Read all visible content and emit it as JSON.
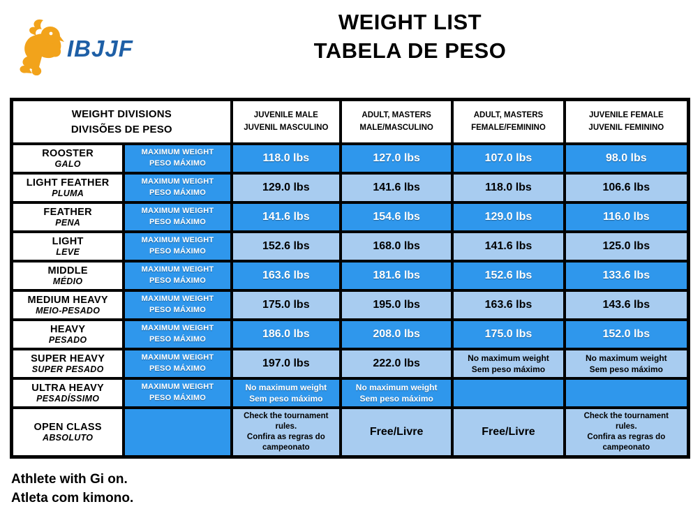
{
  "header": {
    "logo_text": "IBJJF",
    "title_en": "WEIGHT LIST",
    "title_pt": "TABELA DE PESO"
  },
  "colors": {
    "bright_blue": "#2F97EC",
    "light_blue": "#A8CCF0",
    "logo_blue": "#1E5FA6",
    "logo_orange": "#F2A31B"
  },
  "table": {
    "header": {
      "divisions_en": "WEIGHT DIVISIONS",
      "divisions_pt": "DIVISÕES DE PESO",
      "columns": [
        {
          "en": "JUVENILE MALE",
          "pt": "JUVENIL MASCULINO"
        },
        {
          "en": "ADULT, MASTERS",
          "pt": "MALE/MASCULINO"
        },
        {
          "en": "ADULT, MASTERS",
          "pt": "FEMALE/FEMININO"
        },
        {
          "en": "JUVENILE FEMALE",
          "pt": "JUVENIL FEMININO"
        }
      ]
    },
    "max_weight_label": {
      "en": "MAXIMUM WEIGHT",
      "pt": "PESO MÁXIMO"
    },
    "rows": [
      {
        "name_en": "ROOSTER",
        "name_pt": "GALO",
        "shade": "bright",
        "show_max_label": true,
        "cells": [
          {
            "variant": "value",
            "lines": [
              "118.0 lbs"
            ]
          },
          {
            "variant": "value",
            "lines": [
              "127.0 lbs"
            ]
          },
          {
            "variant": "value",
            "lines": [
              "107.0 lbs"
            ]
          },
          {
            "variant": "value",
            "lines": [
              "98.0 lbs"
            ]
          }
        ]
      },
      {
        "name_en": "LIGHT FEATHER",
        "name_pt": "PLUMA",
        "shade": "light",
        "show_max_label": true,
        "cells": [
          {
            "variant": "value",
            "lines": [
              "129.0 lbs"
            ]
          },
          {
            "variant": "value",
            "lines": [
              "141.6 lbs"
            ]
          },
          {
            "variant": "value",
            "lines": [
              "118.0 lbs"
            ]
          },
          {
            "variant": "value",
            "lines": [
              "106.6 lbs"
            ]
          }
        ]
      },
      {
        "name_en": "FEATHER",
        "name_pt": "PENA",
        "shade": "bright",
        "show_max_label": true,
        "cells": [
          {
            "variant": "value",
            "lines": [
              "141.6 lbs"
            ]
          },
          {
            "variant": "value",
            "lines": [
              "154.6 lbs"
            ]
          },
          {
            "variant": "value",
            "lines": [
              "129.0 lbs"
            ]
          },
          {
            "variant": "value",
            "lines": [
              "116.0 lbs"
            ]
          }
        ]
      },
      {
        "name_en": "LIGHT",
        "name_pt": "LEVE",
        "shade": "light",
        "show_max_label": true,
        "cells": [
          {
            "variant": "value",
            "lines": [
              "152.6 lbs"
            ]
          },
          {
            "variant": "value",
            "lines": [
              "168.0 lbs"
            ]
          },
          {
            "variant": "value",
            "lines": [
              "141.6 lbs"
            ]
          },
          {
            "variant": "value",
            "lines": [
              "125.0 lbs"
            ]
          }
        ]
      },
      {
        "name_en": "MIDDLE",
        "name_pt": "MÉDIO",
        "shade": "bright",
        "show_max_label": true,
        "cells": [
          {
            "variant": "value",
            "lines": [
              "163.6 lbs"
            ]
          },
          {
            "variant": "value",
            "lines": [
              "181.6 lbs"
            ]
          },
          {
            "variant": "value",
            "lines": [
              "152.6 lbs"
            ]
          },
          {
            "variant": "value",
            "lines": [
              "133.6 lbs"
            ]
          }
        ]
      },
      {
        "name_en": "MEDIUM HEAVY",
        "name_pt": "MEIO-PESADO",
        "shade": "light",
        "show_max_label": true,
        "cells": [
          {
            "variant": "value",
            "lines": [
              "175.0 lbs"
            ]
          },
          {
            "variant": "value",
            "lines": [
              "195.0 lbs"
            ]
          },
          {
            "variant": "value",
            "lines": [
              "163.6 lbs"
            ]
          },
          {
            "variant": "value",
            "lines": [
              "143.6 lbs"
            ]
          }
        ]
      },
      {
        "name_en": "HEAVY",
        "name_pt": "PESADO",
        "shade": "bright",
        "show_max_label": true,
        "cells": [
          {
            "variant": "value",
            "lines": [
              "186.0 lbs"
            ]
          },
          {
            "variant": "value",
            "lines": [
              "208.0 lbs"
            ]
          },
          {
            "variant": "value",
            "lines": [
              "175.0 lbs"
            ]
          },
          {
            "variant": "value",
            "lines": [
              "152.0 lbs"
            ]
          }
        ]
      },
      {
        "name_en": "SUPER HEAVY",
        "name_pt": "SUPER PESADO",
        "shade": "light",
        "show_max_label": true,
        "cells": [
          {
            "variant": "value",
            "lines": [
              "197.0 lbs"
            ]
          },
          {
            "variant": "value",
            "lines": [
              "222.0 lbs"
            ]
          },
          {
            "variant": "note",
            "lines": [
              "No maximum weight",
              "Sem peso máximo"
            ]
          },
          {
            "variant": "note",
            "lines": [
              "No maximum weight",
              "Sem peso máximo"
            ]
          }
        ]
      },
      {
        "name_en": "ULTRA HEAVY",
        "name_pt": "PESADÍSSIMO",
        "shade": "bright",
        "show_max_label": true,
        "cells": [
          {
            "variant": "note",
            "lines": [
              "No maximum weight",
              "Sem peso máximo"
            ]
          },
          {
            "variant": "note",
            "lines": [
              "No maximum weight",
              "Sem peso máximo"
            ]
          },
          {
            "variant": "empty",
            "lines": []
          },
          {
            "variant": "empty",
            "lines": []
          }
        ]
      },
      {
        "name_en": "OPEN CLASS",
        "name_pt": "ABSOLUTO",
        "shade": "light",
        "show_max_label": false,
        "cells": [
          {
            "variant": "check",
            "lines": [
              "Check the tournament rules.",
              "Confira as regras do campeonato"
            ]
          },
          {
            "variant": "free",
            "lines": [
              "Free/Livre"
            ]
          },
          {
            "variant": "free",
            "lines": [
              "Free/Livre"
            ]
          },
          {
            "variant": "check",
            "lines": [
              "Check the tournament rules.",
              "Confira as regras do campeonato"
            ]
          }
        ]
      }
    ]
  },
  "footnote": {
    "line1": "Athlete with Gi on.",
    "line2": "Atleta com kimono."
  }
}
